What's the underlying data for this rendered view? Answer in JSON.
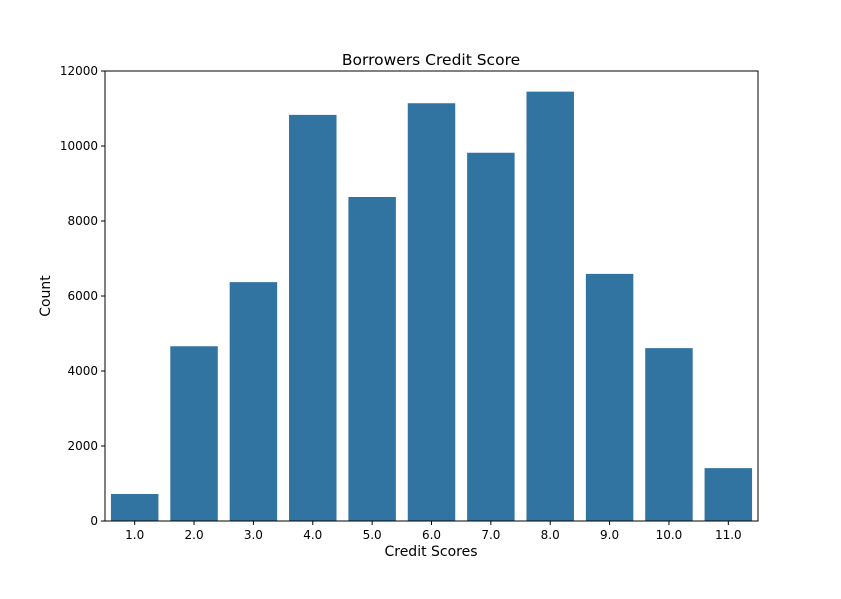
{
  "chart_data": {
    "type": "bar",
    "title": "Borrowers Credit Score",
    "xlabel": "Credit Scores",
    "ylabel": "Count",
    "categories": [
      "1.0",
      "2.0",
      "3.0",
      "4.0",
      "5.0",
      "6.0",
      "7.0",
      "8.0",
      "9.0",
      "10.0",
      "11.0"
    ],
    "values": [
      720,
      4660,
      6370,
      10830,
      8640,
      11140,
      9820,
      11450,
      6590,
      4610,
      1410
    ],
    "ylim": [
      0,
      12000
    ],
    "yticks": [
      "0",
      "2000",
      "4000",
      "6000",
      "8000",
      "10000",
      "12000"
    ],
    "grid": false,
    "legend": "none",
    "bar_color": "#3274a1"
  }
}
